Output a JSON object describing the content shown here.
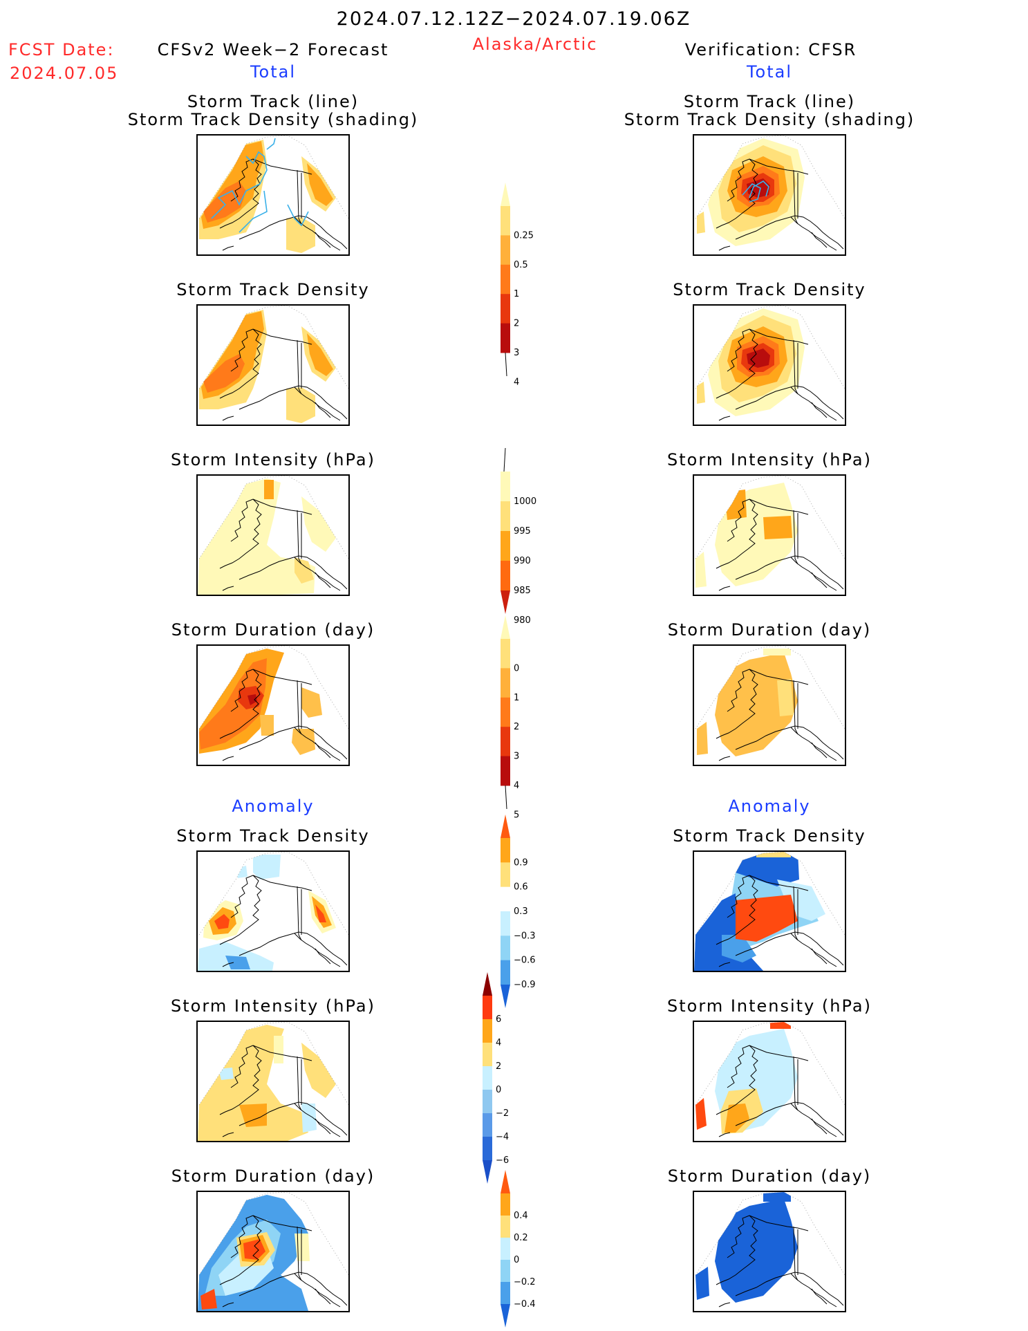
{
  "header": {
    "date_range": "2024.07.12.12Z−2024.07.19.06Z",
    "fcst_label": "FCST Date:",
    "fcst_date": "2024.07.05",
    "left_title": "CFSv2 Week−2 Forecast",
    "region": "Alaska/Arctic",
    "right_title": "Verification: CFSR",
    "left_sub": "Total",
    "right_sub": "Total"
  },
  "sections": {
    "anomaly_left": "Anomaly",
    "anomaly_right": "Anomaly"
  },
  "panel_titles": {
    "p1_line1": "Storm Track (line)",
    "p1_line2": "Storm Track Density (shading)",
    "density": "Storm Track Density",
    "intensity": "Storm Intensity (hPa)",
    "duration": "Storm Duration (day)"
  },
  "colorbars": {
    "density": {
      "labels": [
        "0.25",
        "0.5",
        "1",
        "2",
        "3",
        "4"
      ],
      "colors": [
        "#fff9b8",
        "#ffe07a",
        "#ffb03a",
        "#ff7a1a",
        "#e8380e",
        "#b80d0d"
      ],
      "low_end": "line",
      "high_end": "#8b0000"
    },
    "intensity": {
      "labels": [
        "1000",
        "995",
        "990",
        "985",
        "980"
      ],
      "colors": [
        "#fff9b8",
        "#ffe07a",
        "#ffa61a",
        "#ff6a10",
        "#cc1f0f"
      ],
      "high_end": "line",
      "low_end": "#8b0000"
    },
    "duration": {
      "labels": [
        "0",
        "1",
        "2",
        "3",
        "4",
        "5"
      ],
      "colors": [
        "#fff9b8",
        "#ffe07a",
        "#ffb03a",
        "#ff7a1a",
        "#e8380e",
        "#b80d0d"
      ],
      "low_end": "line",
      "high_end": "#8b0000"
    },
    "anom_density": {
      "labels": [
        "0.9",
        "0.6",
        "0.3",
        "−0.3",
        "−0.6",
        "−0.9"
      ],
      "colors": [
        "#ff5a10",
        "#ffa61a",
        "#ffe07a",
        "#ffffff",
        "#c8f0ff",
        "#8fd4f5",
        "#4aa0ea",
        "#1a63d8"
      ]
    },
    "anom_intensity": {
      "labels": [
        "6",
        "4",
        "2",
        "0",
        "−2",
        "−4",
        "−6"
      ],
      "colors": [
        "#8b0000",
        "#ff3a10",
        "#ffa61a",
        "#ffe07a",
        "#c8f0ff",
        "#8fc8f0",
        "#5a9ae8",
        "#2a6ad8",
        "#1a4fc8"
      ]
    },
    "anom_duration": {
      "labels": [
        "0.4",
        "0.2",
        "0",
        "−0.2",
        "−0.4"
      ],
      "colors": [
        "#ff5a10",
        "#ffa61a",
        "#ffe07a",
        "#c8f0ff",
        "#8fd4f5",
        "#4aa0ea",
        "#1a63d8"
      ]
    }
  },
  "colors": {
    "label_red": "#ff2a2a",
    "label_blue": "#1a3cff"
  }
}
